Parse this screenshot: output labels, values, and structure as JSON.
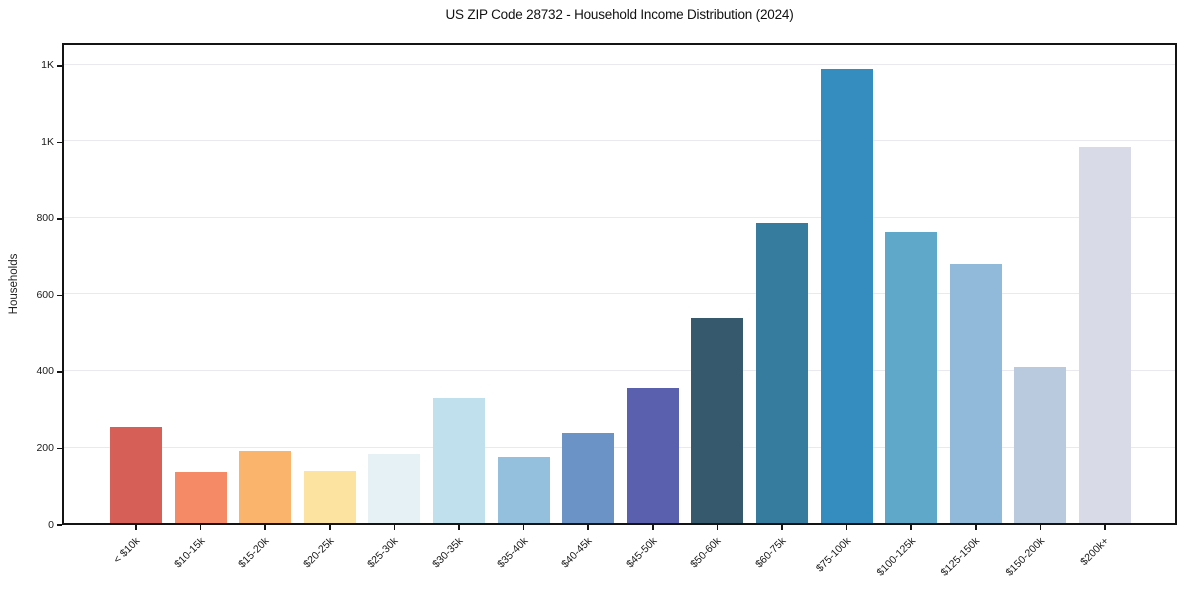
{
  "chart_data": {
    "type": "bar",
    "title": "US ZIP Code 28732 - Household Income Distribution (2024)",
    "xlabel": "",
    "ylabel": "Households",
    "categories": [
      "< $10k",
      "$10-15k",
      "$15-20k",
      "$20-25k",
      "$25-30k",
      "$30-35k",
      "$35-40k",
      "$40-45k",
      "$45-50k",
      "$50-60k",
      "$60-75k",
      "$75-100k",
      "$100-125k",
      "$125-150k",
      "$150-200k",
      "$200k+"
    ],
    "values": [
      250,
      134,
      188,
      137,
      180,
      326,
      172,
      235,
      352,
      536,
      785,
      1187,
      760,
      678,
      408,
      982
    ],
    "bar_colors": [
      "#d65f57",
      "#f58a67",
      "#fbb46c",
      "#fde3a0",
      "#e6f1f6",
      "#c0e0ee",
      "#94bfdd",
      "#6b93c6",
      "#5a5fae",
      "#36596e",
      "#357c9f",
      "#358cbf",
      "#60a8ca",
      "#90b9da",
      "#b9cadf",
      "#d8dae8"
    ],
    "ylim": [
      0,
      1260
    ],
    "yticks": [
      {
        "value": 0,
        "label": "0"
      },
      {
        "value": 200,
        "label": "200"
      },
      {
        "value": 400,
        "label": "400"
      },
      {
        "value": 600,
        "label": "600"
      },
      {
        "value": 800,
        "label": "800"
      },
      {
        "value": 1000,
        "label": "1K"
      },
      {
        "value": 1200,
        "label": "1K"
      }
    ],
    "grid": "horizontal",
    "legend_position": "none",
    "x_tick_rotation_deg": 45
  },
  "style": {
    "background": "#ffffff",
    "spine_color": "#141414",
    "grid_color": "#e9e9ee",
    "text_color": "#1a1a1a"
  }
}
